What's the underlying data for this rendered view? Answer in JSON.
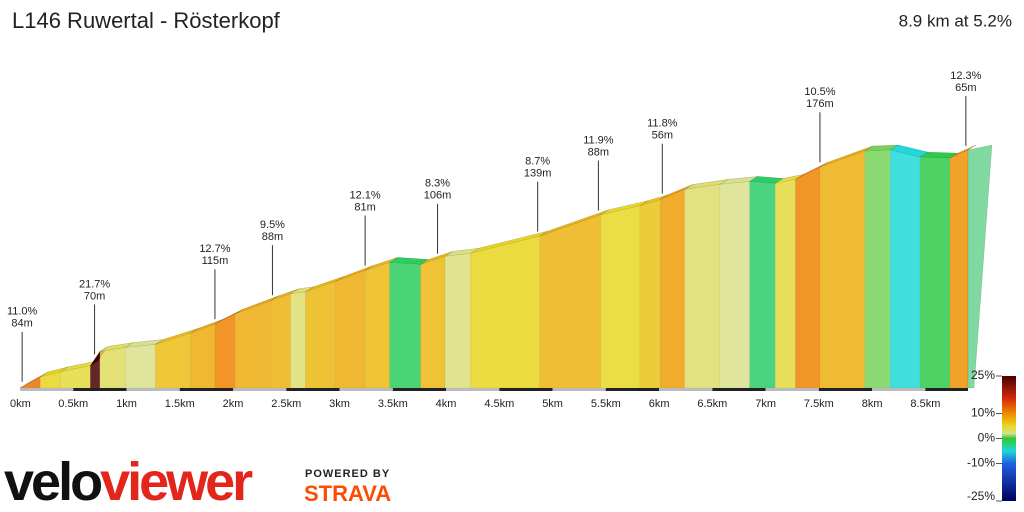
{
  "title": "L146 Ruwertal - Rösterkopf",
  "summary": "8.9 km at 5.2%",
  "branding": {
    "logo_1": "velo",
    "logo_2": "viewer",
    "powered": "POWERED BY",
    "strava": "STRAVA"
  },
  "chart_data": {
    "type": "area",
    "x": [
      0,
      0.19,
      0.38,
      0.66,
      0.75,
      0.99,
      1.27,
      1.6,
      1.83,
      2.02,
      2.35,
      2.54,
      2.68,
      2.96,
      3.24,
      3.47,
      3.76,
      3.99,
      4.23,
      4.88,
      5.45,
      5.82,
      6.01,
      6.24,
      6.57,
      6.85,
      7.09,
      7.28,
      7.51,
      7.93,
      8.17,
      8.45,
      8.73,
      8.9
    ],
    "y": [
      0,
      22,
      32,
      44,
      72,
      80,
      86,
      108,
      126,
      146,
      172,
      186,
      190,
      210,
      232,
      248,
      244,
      260,
      266,
      300,
      342,
      360,
      372,
      392,
      402,
      408,
      404,
      412,
      436,
      468,
      470,
      456,
      454,
      470
    ],
    "xlim": [
      0,
      8.9
    ],
    "ylim": [
      0,
      470
    ],
    "xticks": [
      {
        "value": 0,
        "label": "0km"
      },
      {
        "value": 0.5,
        "label": "0.5km"
      },
      {
        "value": 1,
        "label": "1km"
      },
      {
        "value": 1.5,
        "label": "1.5km"
      },
      {
        "value": 2,
        "label": "2km"
      },
      {
        "value": 2.5,
        "label": "2.5km"
      },
      {
        "value": 3,
        "label": "3km"
      },
      {
        "value": 3.5,
        "label": "3.5km"
      },
      {
        "value": 4,
        "label": "4km"
      },
      {
        "value": 4.5,
        "label": "4.5km"
      },
      {
        "value": 5,
        "label": "5km"
      },
      {
        "value": 5.5,
        "label": "5.5km"
      },
      {
        "value": 6,
        "label": "6km"
      },
      {
        "value": 6.5,
        "label": "6.5km"
      },
      {
        "value": 7,
        "label": "7km"
      },
      {
        "value": 7.5,
        "label": "7.5km"
      },
      {
        "value": 8,
        "label": "8km"
      },
      {
        "value": 8.5,
        "label": "8.5km"
      }
    ],
    "annotations": [
      {
        "x": 0.02,
        "gradient": "11.0%",
        "length": "84m"
      },
      {
        "x": 0.7,
        "gradient": "21.7%",
        "length": "70m"
      },
      {
        "x": 1.83,
        "gradient": "12.7%",
        "length": "115m"
      },
      {
        "x": 2.37,
        "gradient": "9.5%",
        "length": "88m"
      },
      {
        "x": 3.24,
        "gradient": "12.1%",
        "length": "81m"
      },
      {
        "x": 3.92,
        "gradient": "8.3%",
        "length": "106m"
      },
      {
        "x": 4.86,
        "gradient": "8.7%",
        "length": "139m"
      },
      {
        "x": 5.43,
        "gradient": "11.9%",
        "length": "88m"
      },
      {
        "x": 6.03,
        "gradient": "11.8%",
        "length": "56m"
      },
      {
        "x": 7.51,
        "gradient": "10.5%",
        "length": "176m"
      },
      {
        "x": 8.88,
        "gradient": "12.3%",
        "length": "65m"
      }
    ],
    "colorscale": [
      {
        "value": 25,
        "color": "#4a0000"
      },
      {
        "value": 16,
        "color": "#d42a0a"
      },
      {
        "value": 10,
        "color": "#f08a00"
      },
      {
        "value": 5,
        "color": "#e8d820"
      },
      {
        "value": 2,
        "color": "#d8e090"
      },
      {
        "value": 0,
        "color": "#30c830"
      },
      {
        "value": -5,
        "color": "#20d8d8"
      },
      {
        "value": -10,
        "color": "#2060e0"
      },
      {
        "value": -25,
        "color": "#000060"
      }
    ],
    "colorbar_lim": [
      -25,
      25
    ],
    "colorbar_ticks": [
      {
        "value": 25,
        "label": "25%"
      },
      {
        "value": 10,
        "label": "10%"
      },
      {
        "value": 0,
        "label": "0%"
      },
      {
        "value": -10,
        "label": "-10%"
      },
      {
        "value": -25,
        "label": "-25%"
      }
    ]
  }
}
